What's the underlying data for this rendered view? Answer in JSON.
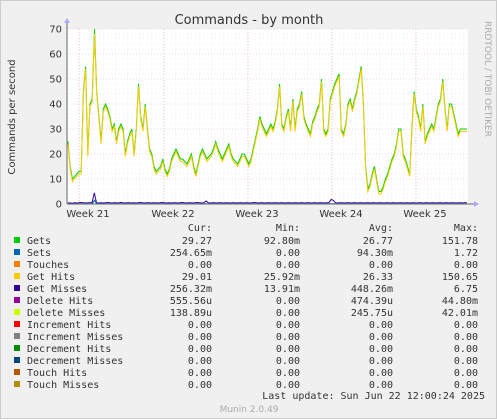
{
  "chart_data": {
    "type": "line",
    "title": "Commands - by month",
    "ylabel": "Commands per second",
    "ylim": [
      0,
      70
    ],
    "yticks": [
      "0",
      "10",
      "20",
      "30",
      "40",
      "50",
      "60",
      "70"
    ],
    "xticks": [
      "Week 21",
      "Week 22",
      "Week 23",
      "Week 24",
      "Week 25"
    ],
    "watermark": "RRDTOOL / TOBI OETIKER",
    "legend_headers": [
      "Cur:",
      "Min:",
      "Avg:",
      "Max:"
    ],
    "legend": [
      {
        "name": "Gets",
        "color": "#00cc00",
        "cur": "29.27",
        "min": "92.80m",
        "avg": "26.77",
        "max": "151.78"
      },
      {
        "name": "Sets",
        "color": "#0066b3",
        "cur": "254.65m",
        "min": "0.00",
        "avg": "94.30m",
        "max": "1.72"
      },
      {
        "name": "Touches",
        "color": "#ff8000",
        "cur": "0.00",
        "min": "0.00",
        "avg": "0.00",
        "max": "0.00"
      },
      {
        "name": "Get Hits",
        "color": "#ffcc00",
        "cur": "29.01",
        "min": "25.92m",
        "avg": "26.33",
        "max": "150.65"
      },
      {
        "name": "Get Misses",
        "color": "#330099",
        "cur": "256.32m",
        "min": "13.91m",
        "avg": "448.26m",
        "max": "6.75"
      },
      {
        "name": "Delete Hits",
        "color": "#990099",
        "cur": "555.56u",
        "min": "0.00",
        "avg": "474.39u",
        "max": "44.80m"
      },
      {
        "name": "Delete Misses",
        "color": "#ccff00",
        "cur": "138.89u",
        "min": "0.00",
        "avg": "245.75u",
        "max": "42.01m"
      },
      {
        "name": "Increment Hits",
        "color": "#ff0000",
        "cur": "0.00",
        "min": "0.00",
        "avg": "0.00",
        "max": "0.00"
      },
      {
        "name": "Increment Misses",
        "color": "#808080",
        "cur": "0.00",
        "min": "0.00",
        "avg": "0.00",
        "max": "0.00"
      },
      {
        "name": "Decrement Hits",
        "color": "#008f00",
        "cur": "0.00",
        "min": "0.00",
        "avg": "0.00",
        "max": "0.00"
      },
      {
        "name": "Decrement Misses",
        "color": "#00487d",
        "cur": "0.00",
        "min": "0.00",
        "avg": "0.00",
        "max": "0.00"
      },
      {
        "name": "Touch Hits",
        "color": "#b35a00",
        "cur": "0.00",
        "min": "0.00",
        "avg": "0.00",
        "max": "0.00"
      },
      {
        "name": "Touch Misses",
        "color": "#b38f00",
        "cur": "0.00",
        "min": "0.00",
        "avg": "0.00",
        "max": "0.00"
      }
    ],
    "last_update": "Last update: Sun Jun 22 12:00:24 2025",
    "footer": "Munin 2.0.49",
    "series": [
      {
        "name": "Gets",
        "color": "#00cc00",
        "values": [
          25,
          15,
          10,
          11,
          12,
          13,
          13,
          45,
          55,
          20,
          40,
          42,
          70,
          45,
          35,
          25,
          38,
          40,
          38,
          35,
          30,
          32,
          25,
          30,
          32,
          30,
          20,
          25,
          28,
          30,
          20,
          30,
          48,
          35,
          30,
          40,
          30,
          22,
          20,
          15,
          13,
          14,
          15,
          18,
          14,
          12,
          14,
          18,
          20,
          22,
          20,
          18,
          18,
          17,
          16,
          18,
          20,
          15,
          12,
          16,
          20,
          22,
          20,
          18,
          19,
          20,
          22,
          25,
          22,
          20,
          18,
          20,
          22,
          24,
          20,
          18,
          17,
          16,
          18,
          20,
          20,
          18,
          16,
          18,
          22,
          26,
          30,
          35,
          32,
          30,
          28,
          30,
          32,
          30,
          33,
          38,
          48,
          32,
          30,
          35,
          38,
          30,
          42,
          30,
          38,
          40,
          45,
          35,
          32,
          30,
          28,
          33,
          35,
          38,
          40,
          50,
          30,
          28,
          30,
          42,
          45,
          48,
          50,
          52,
          30,
          28,
          32,
          40,
          42,
          38,
          42,
          45,
          50,
          55,
          40,
          15,
          6,
          8,
          12,
          15,
          10,
          5,
          5,
          7,
          10,
          12,
          15,
          18,
          20,
          24,
          30,
          30,
          20,
          18,
          15,
          12,
          30,
          45,
          38,
          35,
          30,
          40,
          25,
          28,
          30,
          32,
          30,
          35,
          40,
          42,
          50,
          38,
          30,
          40,
          40,
          36,
          32,
          28,
          30,
          30,
          30,
          30
        ]
      },
      {
        "name": "Get Hits",
        "color": "#ffcc00",
        "values": [
          24,
          14,
          9,
          10,
          11,
          12,
          12,
          44,
          54,
          19,
          39,
          41,
          68,
          44,
          34,
          24,
          37,
          39,
          37,
          34,
          29,
          31,
          24,
          29,
          31,
          29,
          19,
          24,
          27,
          29,
          19,
          29,
          47,
          34,
          29,
          39,
          29,
          21,
          19,
          14,
          12,
          13,
          14,
          17,
          13,
          11,
          13,
          17,
          19,
          21,
          19,
          17,
          17,
          16,
          15,
          17,
          19,
          14,
          11,
          15,
          19,
          21,
          19,
          17,
          18,
          19,
          21,
          24,
          21,
          19,
          17,
          19,
          21,
          23,
          19,
          17,
          16,
          15,
          17,
          19,
          19,
          17,
          15,
          17,
          21,
          25,
          29,
          34,
          31,
          29,
          27,
          29,
          31,
          29,
          32,
          37,
          47,
          31,
          29,
          34,
          37,
          29,
          41,
          29,
          37,
          39,
          44,
          34,
          31,
          29,
          27,
          32,
          34,
          37,
          39,
          49,
          29,
          27,
          29,
          41,
          44,
          47,
          49,
          51,
          29,
          27,
          31,
          39,
          41,
          37,
          41,
          44,
          49,
          54,
          39,
          14,
          5,
          7,
          11,
          14,
          9,
          4,
          4,
          6,
          9,
          11,
          14,
          17,
          19,
          23,
          29,
          29,
          19,
          17,
          14,
          11,
          29,
          44,
          37,
          34,
          29,
          39,
          24,
          27,
          29,
          31,
          29,
          34,
          39,
          41,
          49,
          37,
          29,
          39,
          39,
          35,
          31,
          27,
          29,
          29,
          29,
          29
        ]
      },
      {
        "name": "Get Misses",
        "color": "#330099",
        "values": [
          0.5,
          0.4,
          0.3,
          0.5,
          0.4,
          0.5,
          0.6,
          0.5,
          0.4,
          0.5,
          0.5,
          0.6,
          4.5,
          0.5,
          0.4,
          0.5,
          0.4,
          0.5,
          0.6,
          0.5,
          0.4,
          0.5,
          0.5,
          0.4,
          0.6,
          0.5,
          0.4,
          0.5,
          0.5,
          0.4,
          0.5,
          0.4,
          0.5,
          0.6,
          0.5,
          0.4,
          0.5,
          0.5,
          0.4,
          0.5,
          0.5,
          0.4,
          0.5,
          0.6,
          0.5,
          0.4,
          0.5,
          0.4,
          0.5,
          0.5,
          0.4,
          0.5,
          0.6,
          0.5,
          0.4,
          0.5,
          0.5,
          0.4,
          0.5,
          0.6,
          0.5,
          0.4,
          0.5,
          1.2,
          0.5,
          0.4,
          0.5,
          0.5,
          0.4,
          0.5,
          0.5,
          0.4,
          0.5,
          0.5,
          0.4,
          0.5,
          0.5,
          0.4,
          0.5,
          0.5,
          0.4,
          0.5,
          0.5,
          0.4,
          0.5,
          0.6,
          0.5,
          0.4,
          0.5,
          0.5,
          0.4,
          0.5,
          0.5,
          0.4,
          0.5,
          0.5,
          0.4,
          0.5,
          0.5,
          0.4,
          0.5,
          0.5,
          0.4,
          0.5,
          0.5,
          0.4,
          0.5,
          0.5,
          0.4,
          0.5,
          0.5,
          0.4,
          0.5,
          0.5,
          0.4,
          0.5,
          0.5,
          0.4,
          0.5,
          0.5,
          1.8,
          1.5,
          0.5,
          0.4,
          0.5,
          0.5,
          0.4,
          0.5,
          0.5,
          0.4,
          0.5,
          0.5,
          0.4,
          0.5,
          0.5,
          0.4,
          0.5,
          0.5,
          0.4,
          0.5,
          0.5,
          0.4,
          0.5,
          0.5,
          0.4,
          0.5,
          0.5,
          0.4,
          0.5,
          0.5,
          0.4,
          0.5,
          0.5,
          0.4,
          0.5,
          0.5,
          0.4,
          0.5,
          0.5,
          0.4,
          0.5,
          0.5,
          0.4,
          0.5,
          0.5,
          0.4,
          0.5,
          0.5,
          0.4,
          0.5,
          0.5,
          0.4,
          0.5,
          0.5,
          0.4,
          0.5,
          0.5,
          0.4,
          0.5,
          0.5,
          0.4,
          0.5,
          0.5
        ]
      },
      {
        "name": "Sets",
        "color": "#0066b3",
        "values": [
          0.1,
          0.1,
          0.1,
          0.1,
          0.1,
          0.1,
          0.1,
          0.1,
          0.1,
          0.1,
          0.1,
          0.1,
          1.5,
          0.1,
          0.1,
          0.1,
          0.1,
          0.1,
          0.1,
          0.1,
          0.1,
          0.1,
          0.1,
          0.1,
          0.1,
          0.1,
          0.1,
          0.1,
          0.1,
          0.1,
          0.1,
          0.1,
          0.1,
          0.1,
          0.1,
          0.1,
          0.1,
          0.1,
          0.1,
          0.1,
          0.1,
          0.1,
          0.1,
          0.1,
          0.1,
          0.1,
          0.1,
          0.1,
          0.1,
          0.1,
          0.1,
          0.1,
          0.1,
          0.1,
          0.1,
          0.1,
          0.1,
          0.1,
          0.1,
          0.1,
          0.1,
          0.1,
          0.1,
          0.1,
          0.1,
          0.1,
          0.1,
          0.1,
          0.1,
          0.1,
          0.1,
          0.1,
          0.1,
          0.1,
          0.1,
          0.1,
          0.1,
          0.1,
          0.1,
          0.1,
          0.1,
          0.1,
          0.1,
          0.1,
          0.1,
          0.1,
          0.1,
          0.1,
          0.1,
          0.1,
          0.1,
          0.1,
          0.1,
          0.1,
          0.1,
          0.1,
          0.1,
          0.1,
          0.1,
          0.1,
          0.1,
          0.1,
          0.1,
          0.1,
          0.1,
          0.1,
          0.1,
          0.1,
          0.1,
          0.1,
          0.1,
          0.1,
          0.1,
          0.1,
          0.1,
          0.1,
          0.1,
          0.1,
          0.1,
          0.1,
          0.1,
          0.1,
          0.1,
          0.1,
          0.1,
          0.1,
          0.1,
          0.1,
          0.1,
          0.1,
          0.1,
          0.1,
          0.1,
          0.1,
          0.1,
          0.1,
          0.1,
          0.1,
          0.1,
          0.1,
          0.1,
          0.1,
          0.1,
          0.1,
          0.1,
          0.1,
          0.1,
          0.1,
          0.1,
          0.1,
          0.1,
          0.1,
          0.1,
          0.1,
          0.1,
          0.1,
          0.1,
          0.1,
          0.1,
          0.1,
          0.1,
          0.1,
          0.1,
          0.1,
          0.1,
          0.1,
          0.1,
          0.1,
          0.1,
          0.1,
          0.1,
          0.1,
          0.1,
          0.1,
          0.1,
          0.1,
          0.1,
          0.1,
          0.1,
          0.1,
          0.1,
          0.1
        ]
      }
    ]
  }
}
